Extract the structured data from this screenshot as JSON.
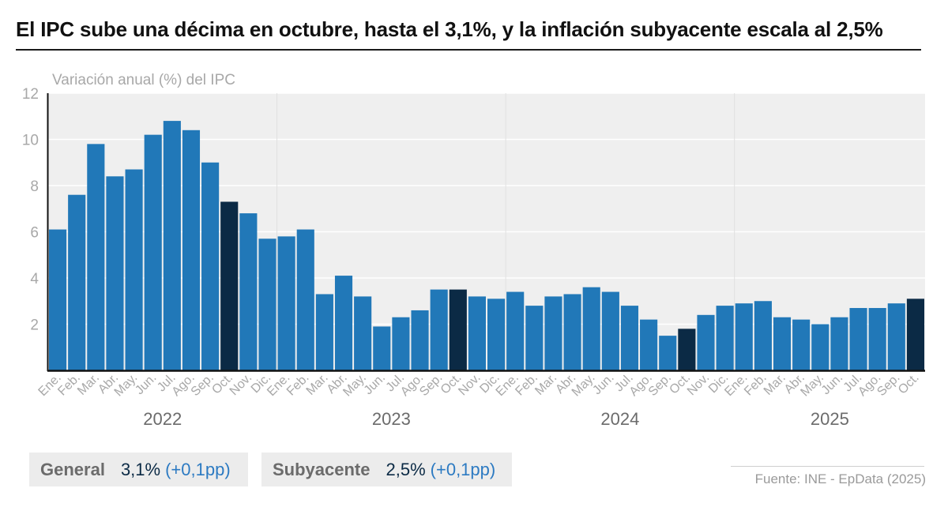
{
  "title": "El IPC sube una décima en octubre, hasta el 3,1%, y la inflación subyacente escala al 2,5%",
  "colors": {
    "bar": "#2178b8",
    "highlight": "#0b2a45",
    "plot_bg": "#efefef",
    "grid": "#ffffff",
    "axis_text": "#a8a8a8",
    "year_text": "#6b6b6b"
  },
  "chart_data": {
    "type": "bar",
    "ylabel": "Variación anual (%) del IPC",
    "ylim": [
      0,
      12
    ],
    "yticks": [
      2,
      4,
      6,
      8,
      10,
      12
    ],
    "categories": [
      "Ene.",
      "Feb.",
      "Mar.",
      "Abr.",
      "May.",
      "Jun.",
      "Jul.",
      "Ago.",
      "Sep.",
      "Oct.",
      "Nov.",
      "Dic.",
      "Ene.",
      "Feb.",
      "Mar.",
      "Abr.",
      "May.",
      "Jun.",
      "Jul.",
      "Ago.",
      "Sep.",
      "Oct.",
      "Nov.",
      "Dic.",
      "Ene.",
      "Feb.",
      "Mar.",
      "Abr.",
      "May.",
      "Jun.",
      "Jul.",
      "Ago.",
      "Sep.",
      "Oct.",
      "Nov.",
      "Dic.",
      "Ene.",
      "Feb.",
      "Mar.",
      "Abr.",
      "May.",
      "Jun.",
      "Jul.",
      "Ago.",
      "Sep.",
      "Oct."
    ],
    "values": [
      6.1,
      7.6,
      9.8,
      8.4,
      8.7,
      10.2,
      10.8,
      10.4,
      9.0,
      7.3,
      6.8,
      5.7,
      5.8,
      6.1,
      3.3,
      4.1,
      3.2,
      1.9,
      2.3,
      2.6,
      3.5,
      3.5,
      3.2,
      3.1,
      3.4,
      2.8,
      3.2,
      3.3,
      3.6,
      3.4,
      2.8,
      2.2,
      1.5,
      1.8,
      2.4,
      2.8,
      2.9,
      3.0,
      2.3,
      2.2,
      2.0,
      2.3,
      2.7,
      2.7,
      2.9,
      3.1
    ],
    "highlight": [
      false,
      false,
      false,
      false,
      false,
      false,
      false,
      false,
      false,
      true,
      false,
      false,
      false,
      false,
      false,
      false,
      false,
      false,
      false,
      false,
      false,
      true,
      false,
      false,
      false,
      false,
      false,
      false,
      false,
      false,
      false,
      false,
      false,
      true,
      false,
      false,
      false,
      false,
      false,
      false,
      false,
      false,
      false,
      false,
      false,
      true
    ],
    "years": [
      {
        "label": "2022",
        "start": 0,
        "end": 11
      },
      {
        "label": "2023",
        "start": 12,
        "end": 23
      },
      {
        "label": "2024",
        "start": 24,
        "end": 35
      },
      {
        "label": "2025",
        "start": 36,
        "end": 45
      }
    ]
  },
  "legend": {
    "general": {
      "label": "General",
      "value": "3,1%",
      "change": "(+0,1pp)"
    },
    "subyacente": {
      "label": "Subyacente",
      "value": "2,5%",
      "change": "(+0,1pp)"
    }
  },
  "source": "Fuente: INE - EpData (2025)"
}
